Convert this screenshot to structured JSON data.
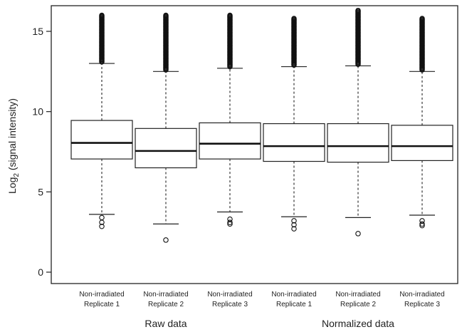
{
  "chart_data": {
    "type": "boxplot",
    "title": "",
    "ylabel": "Log",
    "ylabel_subscript": "2",
    "ylabel_suffix": " (signal intensity)",
    "ylim": [
      -0.6,
      16.6
    ],
    "yticks": [
      0,
      5,
      10,
      15
    ],
    "grid": false,
    "categories": [
      {
        "line1": "Non-irradiated",
        "line2": "Replicate 1"
      },
      {
        "line1": "Non-irradiated",
        "line2": "Replicate 2"
      },
      {
        "line1": "Non-irradiated",
        "line2": "Replicate 3"
      },
      {
        "line1": "Non-irradiated",
        "line2": "Replicate 1"
      },
      {
        "line1": "Non-irradiated",
        "line2": "Replicate 2"
      },
      {
        "line1": "Non-irradiated",
        "line2": "Replicate 3"
      }
    ],
    "groups": [
      {
        "label": "Raw data",
        "categories": [
          0,
          1,
          2
        ]
      },
      {
        "label": "Normalized data",
        "categories": [
          3,
          4,
          5
        ]
      }
    ],
    "boxes": [
      {
        "whisker_low": 3.6,
        "q1": 7.05,
        "median": 8.05,
        "q3": 9.45,
        "whisker_high": 13.0,
        "outliers_low": [
          3.4,
          3.1,
          2.85
        ],
        "outliers_high_from": 13.1,
        "outliers_high_to": 16.0
      },
      {
        "whisker_low": 3.0,
        "q1": 6.5,
        "median": 7.55,
        "q3": 8.95,
        "whisker_high": 12.5,
        "outliers_low": [
          2.0
        ],
        "outliers_high_from": 12.6,
        "outliers_high_to": 16.0
      },
      {
        "whisker_low": 3.75,
        "q1": 7.05,
        "median": 8.0,
        "q3": 9.3,
        "whisker_high": 12.7,
        "outliers_low": [
          3.3,
          3.1,
          3.0
        ],
        "outliers_high_from": 12.8,
        "outliers_high_to": 16.0
      },
      {
        "whisker_low": 3.45,
        "q1": 6.9,
        "median": 7.85,
        "q3": 9.25,
        "whisker_high": 12.8,
        "outliers_low": [
          3.2,
          2.95,
          2.7
        ],
        "outliers_high_from": 12.9,
        "outliers_high_to": 15.8
      },
      {
        "whisker_low": 3.4,
        "q1": 6.85,
        "median": 7.85,
        "q3": 9.25,
        "whisker_high": 12.85,
        "outliers_low": [
          2.4
        ],
        "outliers_high_from": 12.95,
        "outliers_high_to": 16.3
      },
      {
        "whisker_low": 3.55,
        "q1": 6.95,
        "median": 7.85,
        "q3": 9.15,
        "whisker_high": 12.5,
        "outliers_low": [
          3.2,
          3.0,
          2.9
        ],
        "outliers_high_from": 12.6,
        "outliers_high_to": 15.8
      }
    ]
  }
}
